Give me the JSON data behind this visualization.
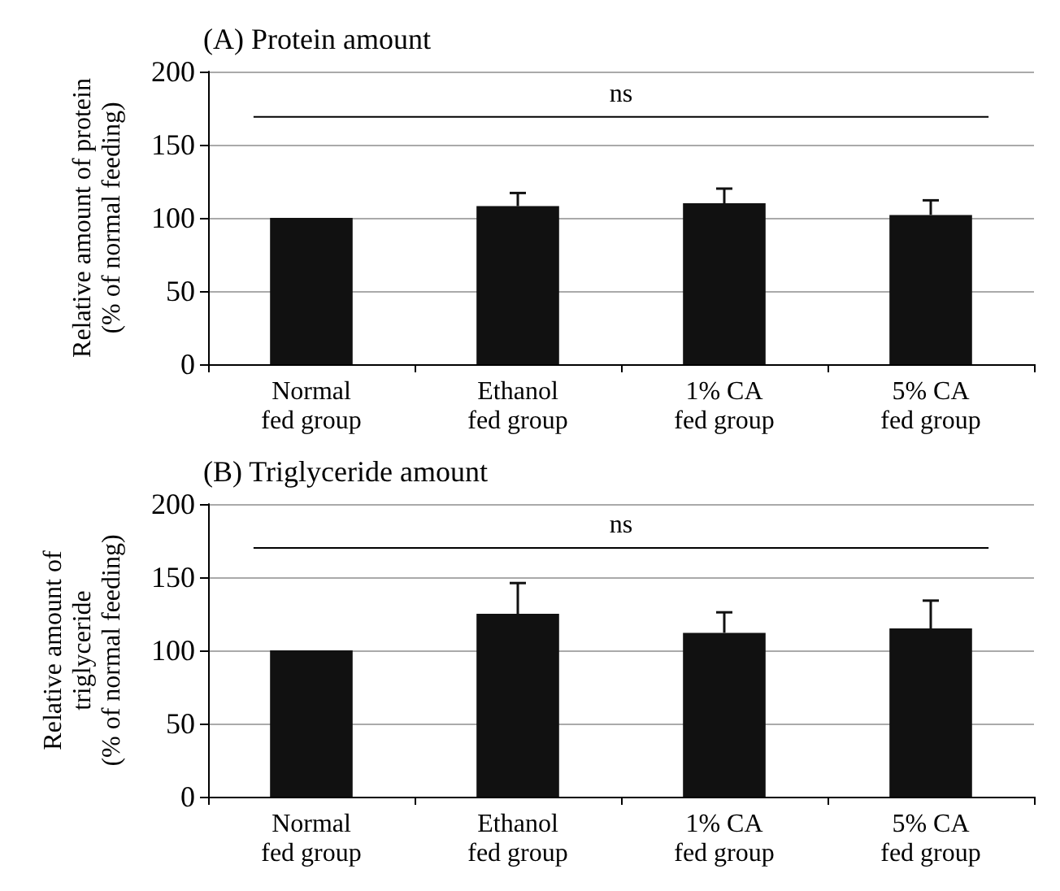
{
  "chart_data": [
    {
      "type": "bar",
      "title": "(A) Protein amount",
      "ylabel": "Relative amount of protein\n(% of normal feeding)",
      "categories": [
        "Normal\nfed group",
        "Ethanol\nfed group",
        "1% CA\nfed group",
        "5% CA\nfed group"
      ],
      "values": [
        100,
        108,
        110,
        102
      ],
      "color": "#111111",
      "errors": [
        null,
        [
          108,
          117
        ],
        [
          110,
          120
        ],
        [
          102,
          112
        ]
      ],
      "ylim": [
        0,
        200
      ],
      "yticks": [
        0,
        50,
        100,
        150,
        200
      ],
      "grid": "y",
      "ref_lines": [
        {
          "axis": "y",
          "value": 169,
          "label": "ns"
        }
      ]
    },
    {
      "type": "bar",
      "title": "(B) Triglyceride amount",
      "ylabel": "Relative amount of\ntriglyceride\n(% of normal feeding)",
      "categories": [
        "Normal\nfed group",
        "Ethanol\nfed group",
        "1% CA\nfed group",
        "5% CA\nfed group"
      ],
      "values": [
        100,
        125,
        112,
        115
      ],
      "color": "#111111",
      "errors": [
        null,
        [
          125,
          146
        ],
        [
          112,
          126
        ],
        [
          115,
          134
        ]
      ],
      "ylim": [
        0,
        200
      ],
      "yticks": [
        0,
        50,
        100,
        150,
        200
      ],
      "grid": "y",
      "ref_lines": [
        {
          "axis": "y",
          "value": 170,
          "label": "ns"
        }
      ]
    }
  ]
}
